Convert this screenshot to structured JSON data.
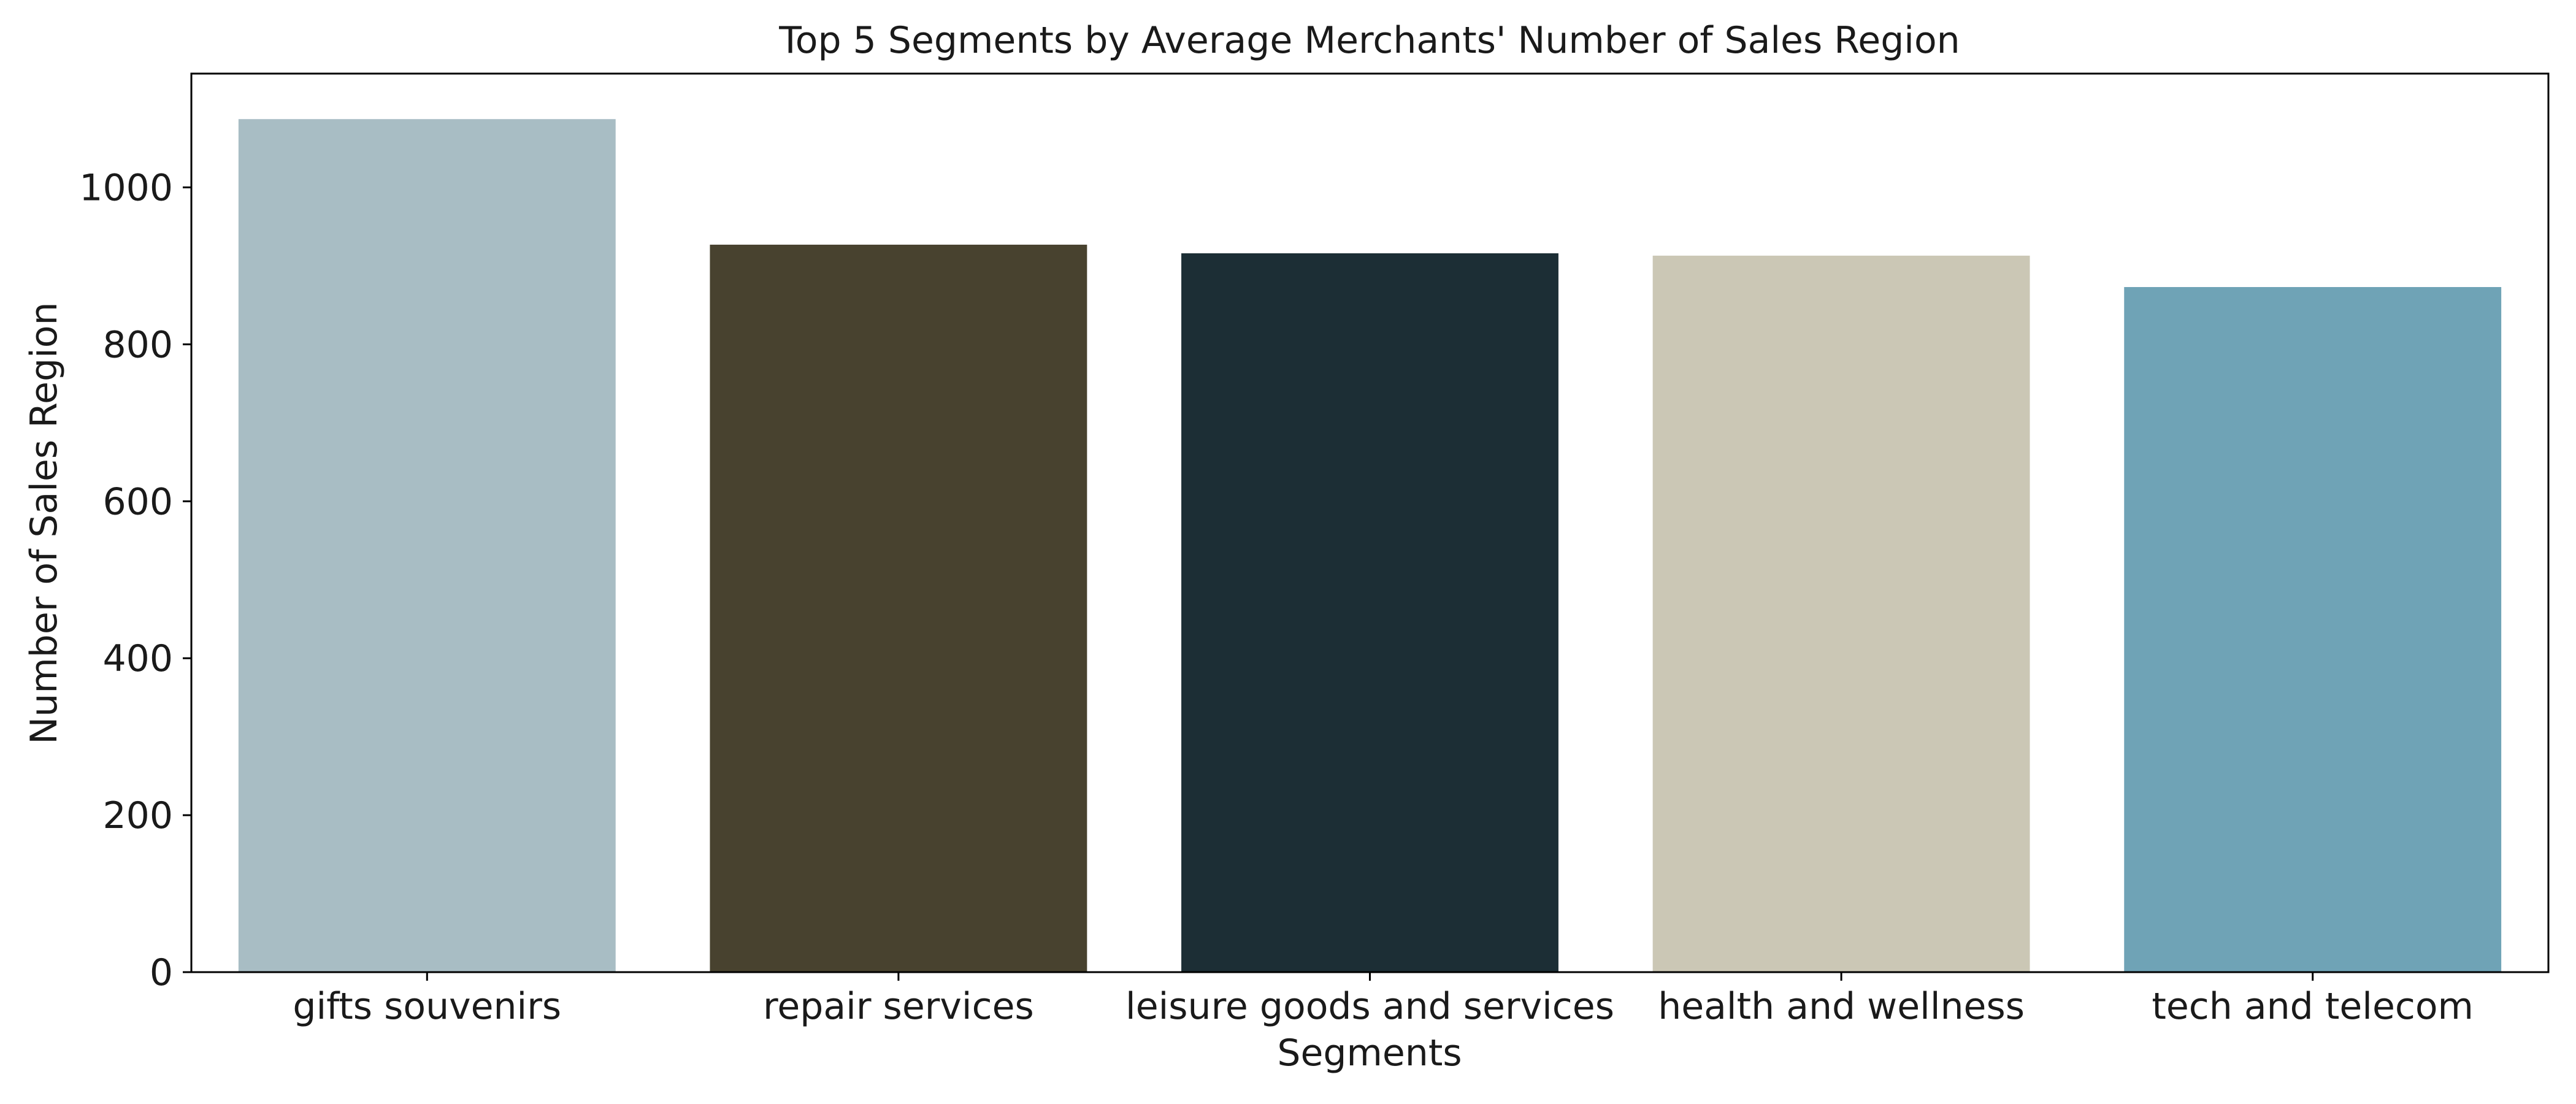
{
  "chart_data": {
    "type": "bar",
    "title": "Top 5 Segments by Average Merchants' Number of Sales Region",
    "xlabel": "Segments",
    "ylabel": "Number of Sales Region",
    "categories": [
      "gifts souvenirs",
      "repair services",
      "leisure goods and services",
      "health and wellness",
      "tech and telecom"
    ],
    "values": [
      1087,
      927,
      916,
      913,
      873
    ],
    "colors": [
      "#a8bdc4",
      "#48422f",
      "#1c2e35",
      "#cbc7b5",
      "#6fa3b6"
    ],
    "ylim": [
      0,
      1145
    ],
    "yticks": [
      0,
      200,
      400,
      600,
      800,
      1000
    ],
    "grid": false,
    "legend": "none"
  }
}
